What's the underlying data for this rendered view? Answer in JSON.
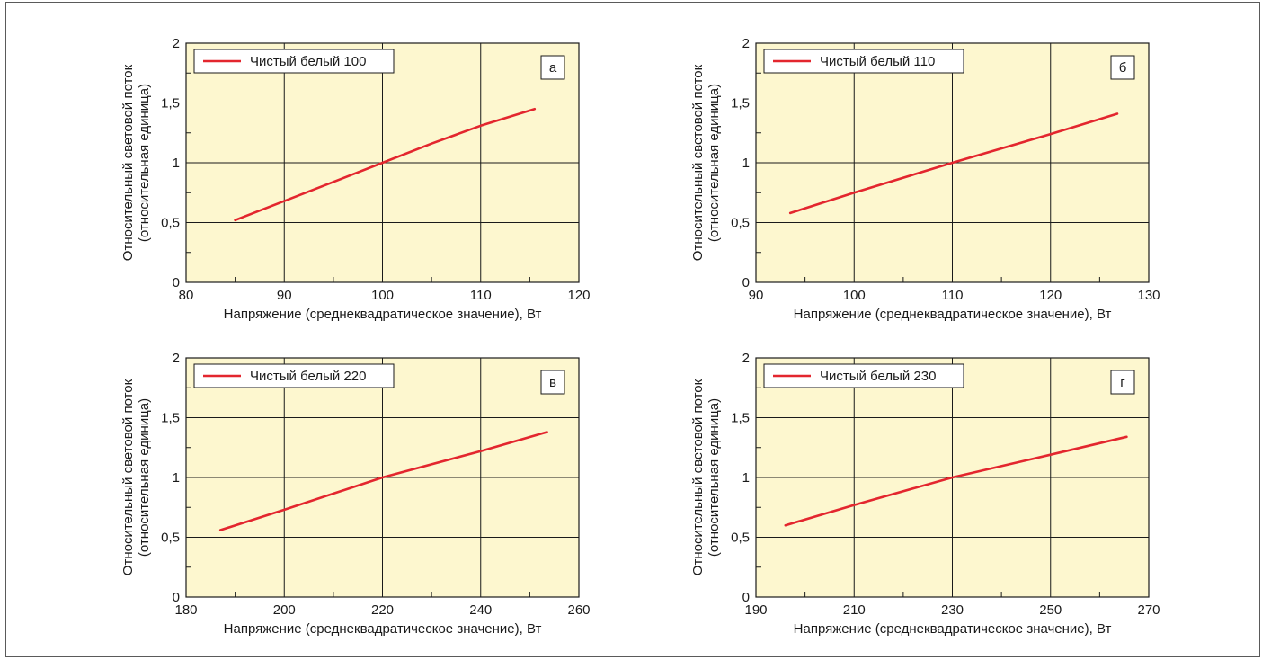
{
  "colors": {
    "plot_background": "#fdf7cf",
    "series_line": "#e3262e",
    "grid": "#1a1a1a"
  },
  "chart_data": [
    {
      "type": "line",
      "panel_label": "а",
      "xlabel": "Напряжение (среднеквадратическое значение), Вт",
      "ylabel": [
        "Относительный световой поток",
        "(относительная единица)"
      ],
      "xlim": [
        80,
        120
      ],
      "ylim": [
        0,
        2
      ],
      "xticks": [
        80,
        90,
        100,
        110,
        120
      ],
      "yticks": [
        0,
        0.5,
        1,
        1.5,
        2
      ],
      "ytick_labels": [
        "0",
        "0,5",
        "1",
        "1,5",
        "2"
      ],
      "grid": true,
      "legend_position": "top-left",
      "series": [
        {
          "name": "Чистый белый 100",
          "x": [
            85,
            90,
            95,
            100,
            105,
            110,
            115.5
          ],
          "y": [
            0.52,
            0.68,
            0.84,
            1.0,
            1.16,
            1.31,
            1.45
          ]
        }
      ]
    },
    {
      "type": "line",
      "panel_label": "б",
      "xlabel": "Напряжение (среднеквадратическое значение), Вт",
      "ylabel": [
        "Относительный световой поток",
        "(относительная единица)"
      ],
      "xlim": [
        90,
        130
      ],
      "ylim": [
        0,
        2
      ],
      "xticks": [
        90,
        100,
        110,
        120,
        130
      ],
      "yticks": [
        0,
        0.5,
        1,
        1.5,
        2
      ],
      "ytick_labels": [
        "0",
        "0,5",
        "1",
        "1,5",
        "2"
      ],
      "grid": true,
      "legend_position": "top-left",
      "series": [
        {
          "name": "Чистый белый 110",
          "x": [
            93.5,
            100,
            110,
            120,
            126.8
          ],
          "y": [
            0.58,
            0.75,
            1.0,
            1.24,
            1.41
          ]
        }
      ]
    },
    {
      "type": "line",
      "panel_label": "в",
      "xlabel": "Напряжение (среднеквадратическое значение), Вт",
      "ylabel": [
        "Относительный световой поток",
        "(относительная единица)"
      ],
      "xlim": [
        180,
        260
      ],
      "ylim": [
        0,
        2
      ],
      "xticks": [
        180,
        200,
        220,
        240,
        260
      ],
      "yticks": [
        0,
        0.5,
        1,
        1.5,
        2
      ],
      "ytick_labels": [
        "0",
        "0,5",
        "1",
        "1,5",
        "2"
      ],
      "grid": true,
      "legend_position": "top-left",
      "series": [
        {
          "name": "Чистый белый 220",
          "x": [
            187,
            200,
            220,
            240,
            253.5
          ],
          "y": [
            0.56,
            0.73,
            1.0,
            1.22,
            1.38
          ]
        }
      ]
    },
    {
      "type": "line",
      "panel_label": "г",
      "xlabel": "Напряжение (среднеквадратическое значение), Вт",
      "ylabel": [
        "Относительный световой поток",
        "(относительная единица)"
      ],
      "xlim": [
        190,
        270
      ],
      "ylim": [
        0,
        2
      ],
      "xticks": [
        190,
        210,
        230,
        250,
        270
      ],
      "yticks": [
        0,
        0.5,
        1,
        1.5,
        2
      ],
      "ytick_labels": [
        "0",
        "0,5",
        "1",
        "1,5",
        "2"
      ],
      "grid": true,
      "legend_position": "top-left",
      "series": [
        {
          "name": "Чистый белый 230",
          "x": [
            196,
            210,
            230,
            250,
            265.5
          ],
          "y": [
            0.6,
            0.77,
            1.0,
            1.19,
            1.34
          ]
        }
      ]
    }
  ]
}
